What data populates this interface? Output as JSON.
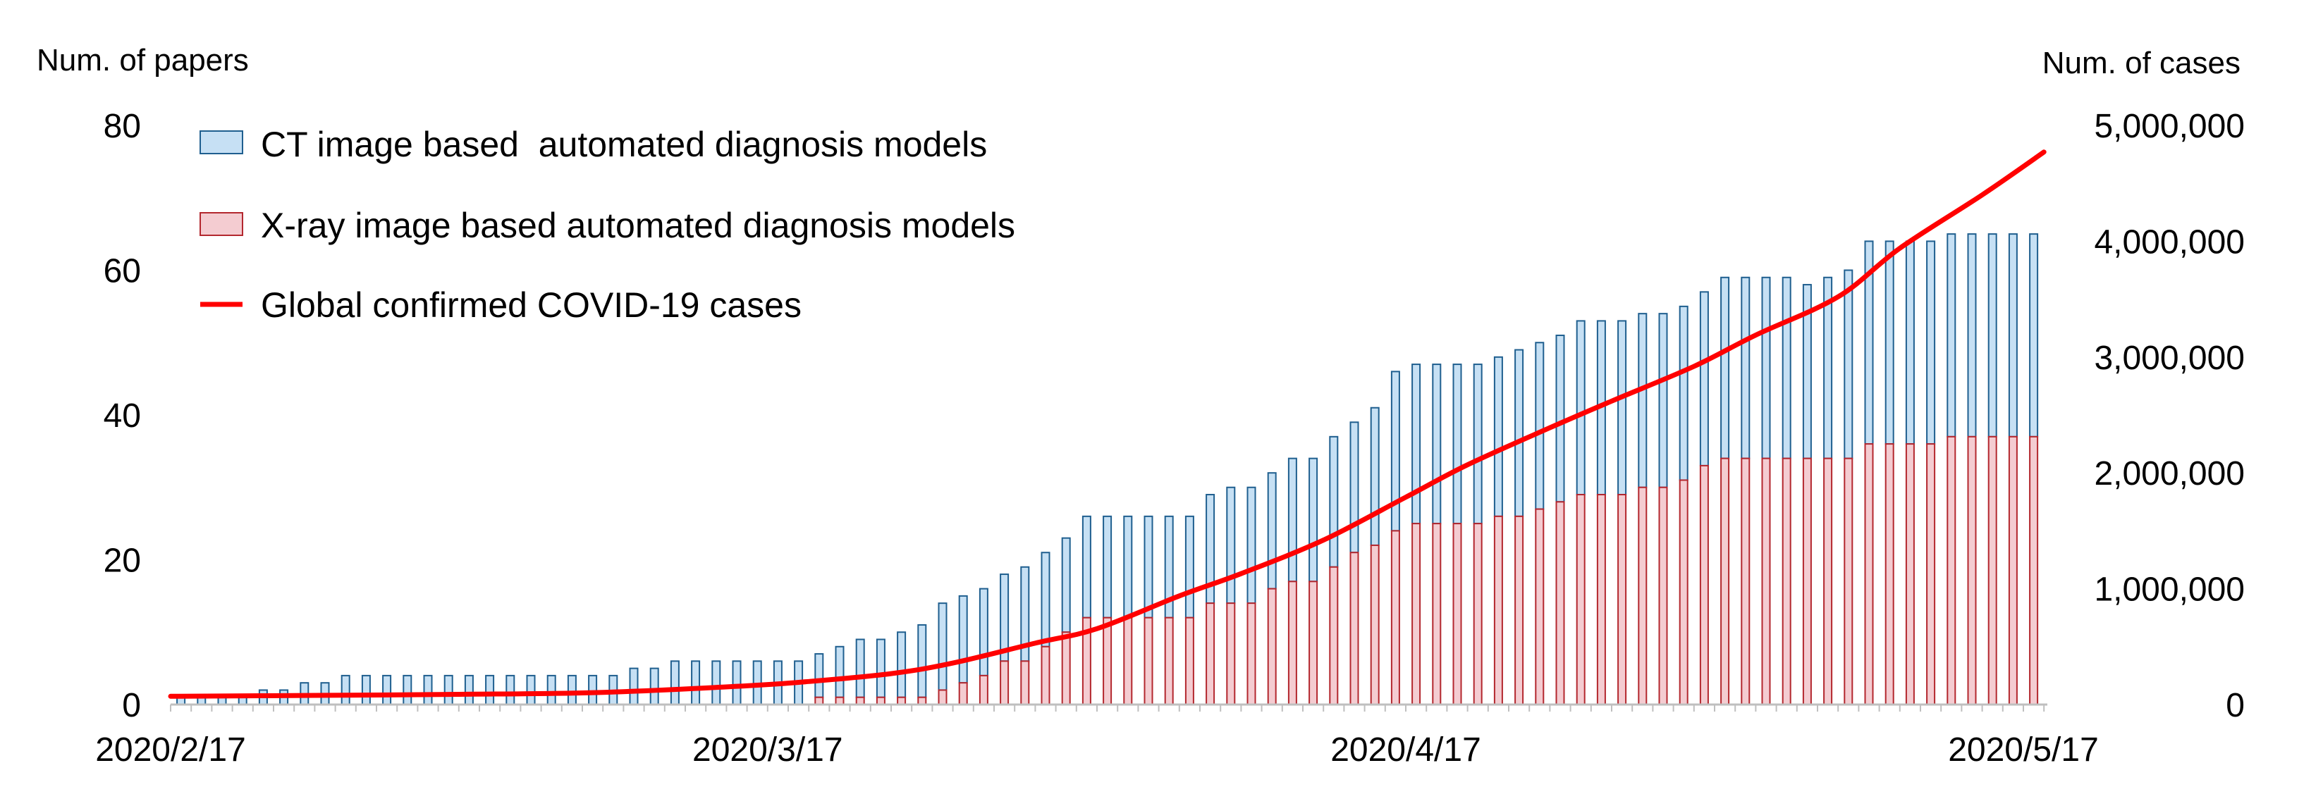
{
  "chart_data": {
    "type": "bar+line",
    "title": "",
    "y_left_label": "Num. of papers",
    "y_right_label": "Num. of cases",
    "y_left_range": [
      0,
      80
    ],
    "y_right_range": [
      0,
      5000000
    ],
    "y_left_ticks": [
      "0",
      "20",
      "40",
      "60",
      "80"
    ],
    "y_right_ticks": [
      "0",
      "1,000,000",
      "2,000,000",
      "3,000,000",
      "4,000,000",
      "5,000,000"
    ],
    "x_tick_labels": [
      {
        "label": "2020/2/17",
        "day": 0
      },
      {
        "label": "2020/3/17",
        "day": 29
      },
      {
        "label": "2020/4/17",
        "day": 60
      },
      {
        "label": "2020/5/17",
        "day": 90
      }
    ],
    "x_range_days": [
      0,
      91
    ],
    "legend": [
      {
        "label": "CT image based  automated diagnosis models",
        "kind": "bar",
        "fill": "#c6e0f4",
        "stroke": "#1f5f8f"
      },
      {
        "label": "X-ray image based automated diagnosis models",
        "kind": "bar",
        "fill": "#f4ccd1",
        "stroke": "#b3272e"
      },
      {
        "label": "Global confirmed COVID-19 cases",
        "kind": "line",
        "stroke": "#ff0000"
      }
    ],
    "series": [
      {
        "name": "CT image based  automated diagnosis models",
        "type": "bar",
        "note": "total bar height (cumulative papers) per day from 2020/2/17",
        "values": [
          1,
          1,
          1,
          1,
          2,
          2,
          3,
          3,
          4,
          4,
          4,
          4,
          4,
          4,
          4,
          4,
          4,
          4,
          4,
          4,
          4,
          4,
          5,
          5,
          6,
          6,
          6,
          6,
          6,
          6,
          6,
          7,
          8,
          9,
          9,
          10,
          11,
          14,
          15,
          16,
          18,
          19,
          21,
          23,
          26,
          26,
          26,
          26,
          26,
          26,
          29,
          30,
          30,
          32,
          34,
          34,
          37,
          39,
          41,
          46,
          47,
          47,
          47,
          47,
          48,
          49,
          50,
          51,
          53,
          53,
          53,
          54,
          54,
          55,
          57,
          59,
          59,
          59,
          59,
          58,
          59,
          60,
          64,
          64,
          64,
          64,
          65,
          65,
          65,
          65,
          65
        ]
      },
      {
        "name": "X-ray image based automated diagnosis models",
        "type": "bar",
        "note": "red lower segment per day from 2020/2/17",
        "values": [
          0,
          0,
          0,
          0,
          0,
          0,
          0,
          0,
          0,
          0,
          0,
          0,
          0,
          0,
          0,
          0,
          0,
          0,
          0,
          0,
          0,
          0,
          0,
          0,
          0,
          0,
          0,
          0,
          0,
          0,
          0,
          1,
          1,
          1,
          1,
          1,
          1,
          2,
          3,
          4,
          6,
          6,
          8,
          10,
          12,
          12,
          12,
          12,
          12,
          12,
          14,
          14,
          14,
          16,
          17,
          17,
          19,
          21,
          22,
          24,
          25,
          25,
          25,
          25,
          26,
          26,
          27,
          28,
          29,
          29,
          29,
          30,
          30,
          31,
          33,
          34,
          34,
          34,
          34,
          34,
          34,
          34,
          36,
          36,
          36,
          36,
          37,
          37,
          37,
          37,
          37
        ]
      },
      {
        "name": "Global confirmed COVID-19 cases",
        "type": "line",
        "days": [
          0,
          7,
          14,
          21,
          28,
          31,
          35,
          38,
          42,
          45,
          49,
          52,
          56,
          60,
          63,
          67,
          70,
          74,
          77,
          81,
          84,
          88,
          91
        ],
        "values": [
          71000,
          79000,
          88000,
          105000,
          162000,
          199000,
          267000,
          358000,
          530000,
          655000,
          938000,
          1130000,
          1420000,
          1790000,
          2070000,
          2390000,
          2620000,
          2920000,
          3190000,
          3520000,
          3940000,
          4400000,
          4770000
        ]
      }
    ]
  }
}
